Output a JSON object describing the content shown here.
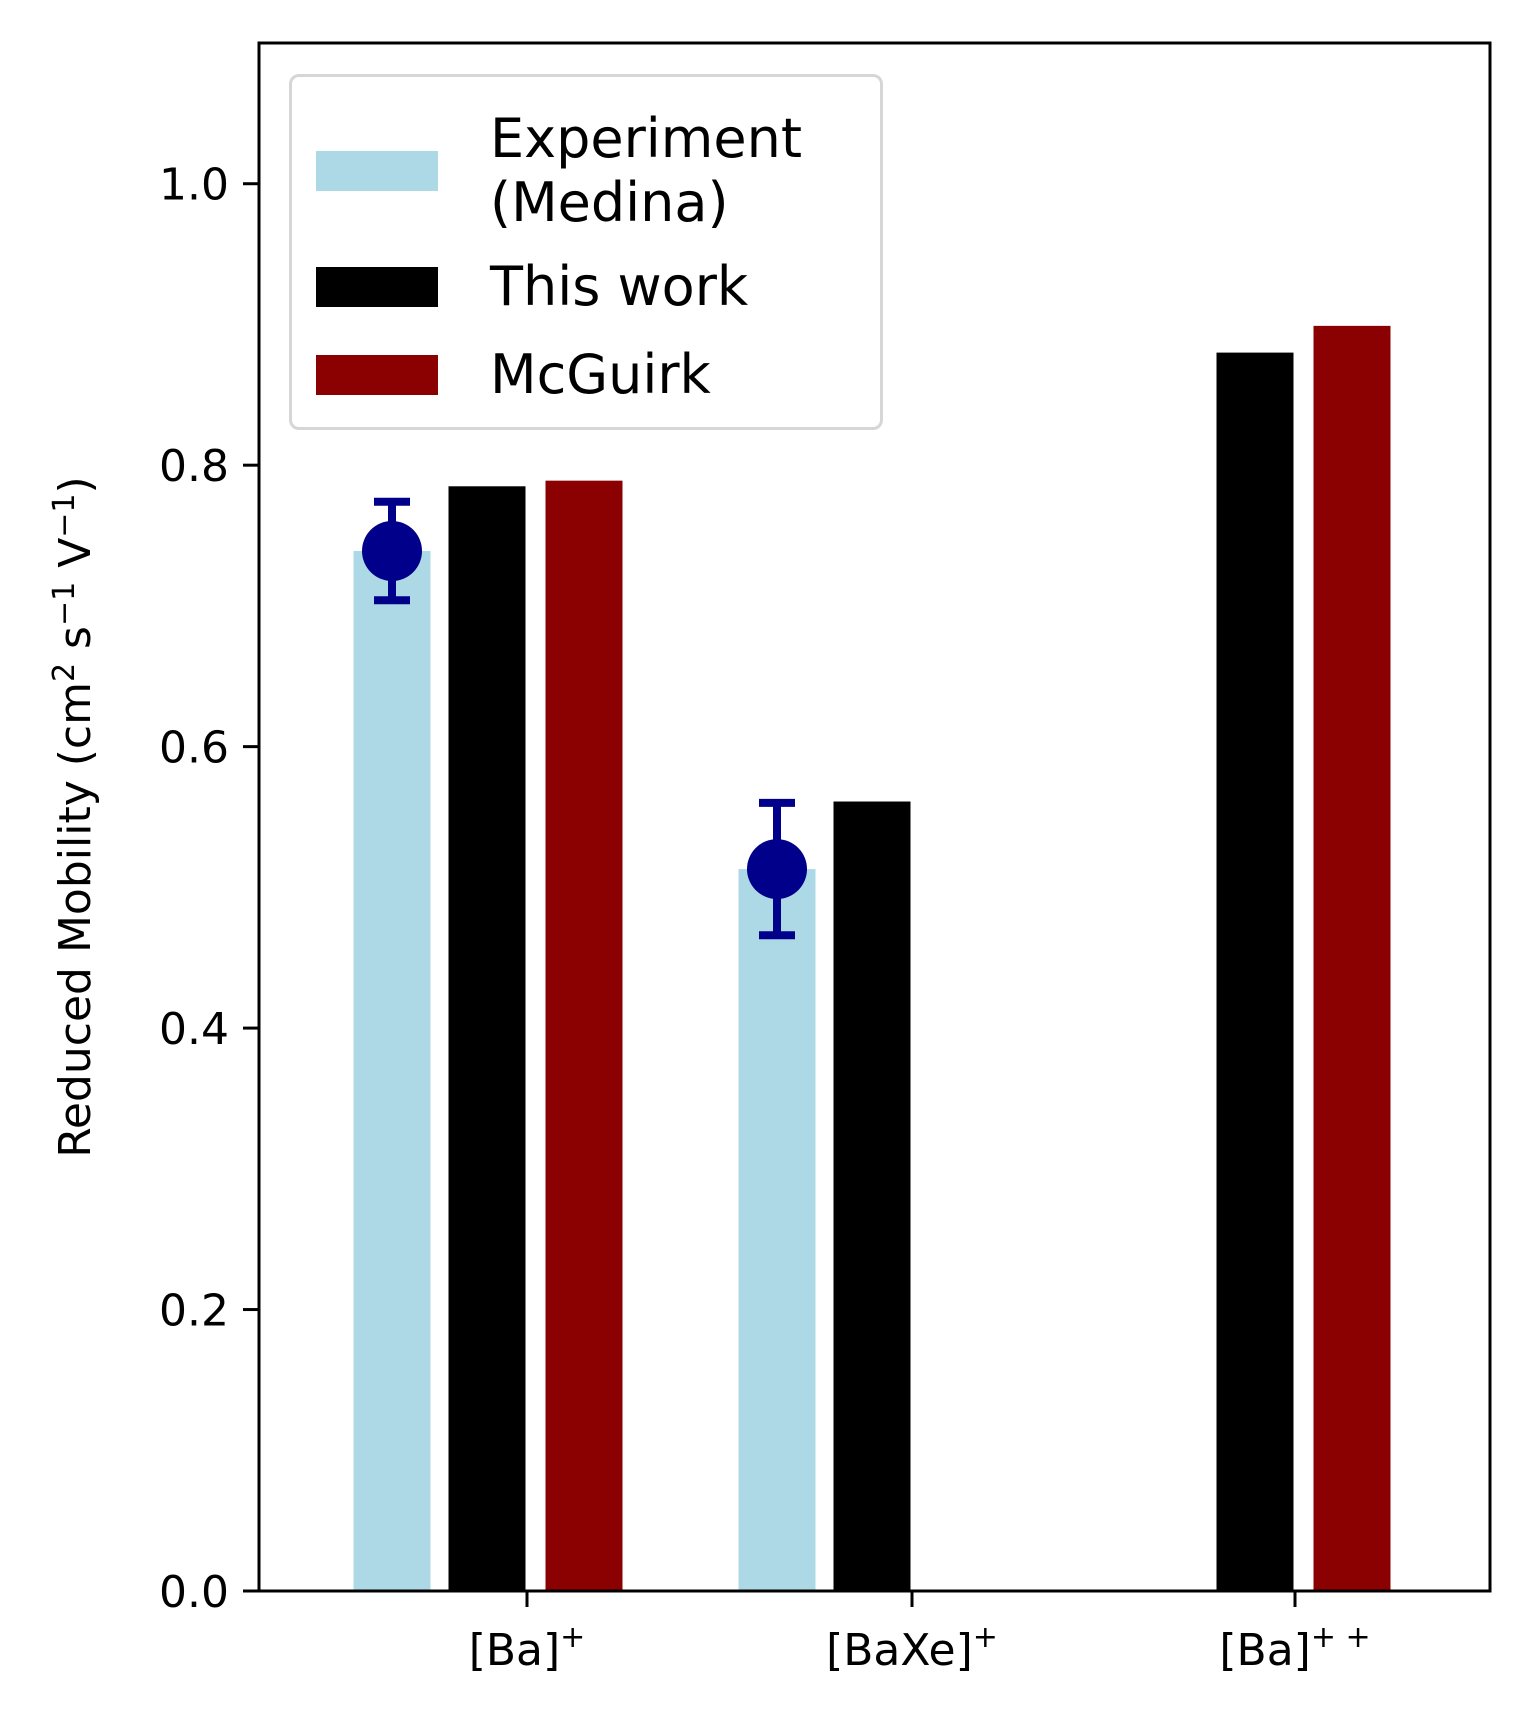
{
  "chart_data": {
    "type": "bar",
    "categories": [
      "[Ba]+",
      "[BaXe]+",
      "[Ba]++"
    ],
    "category_labels": [
      {
        "base": "[Ba]",
        "sup": "+"
      },
      {
        "base": "[BaXe]",
        "sup": "+"
      },
      {
        "base": "[Ba]",
        "sup": "+ +"
      }
    ],
    "ylabel": {
      "parts": [
        {
          "text": "Reduced Mobility (cm",
          "sup": false
        },
        {
          "text": "2",
          "sup": true
        },
        {
          "text": " s",
          "sup": false
        },
        {
          "text": "−1",
          "sup": true
        },
        {
          "text": " V",
          "sup": false
        },
        {
          "text": "−1",
          "sup": true
        },
        {
          "text": ")",
          "sup": false
        }
      ]
    },
    "ylim": [
      0,
      1.1
    ],
    "yticks": [
      0.0,
      0.2,
      0.4,
      0.6,
      0.8,
      1.0
    ],
    "ytick_labels": [
      "0.0",
      "0.2",
      "0.4",
      "0.6",
      "0.8",
      "1.0"
    ],
    "grid": false,
    "legend_position": "top-left",
    "series": [
      {
        "name": "Experiment\n (Medina)",
        "color": "#add8e6",
        "values": [
          0.739,
          0.513,
          null
        ],
        "error": [
          0.035,
          0.047,
          null
        ],
        "marker_color": "#00008b"
      },
      {
        "name": "This work",
        "color": "#000000",
        "values": [
          0.785,
          0.561,
          0.88
        ]
      },
      {
        "name": "McGuirk",
        "color": "#8b0000",
        "values": [
          0.789,
          null,
          0.899
        ]
      }
    ]
  }
}
